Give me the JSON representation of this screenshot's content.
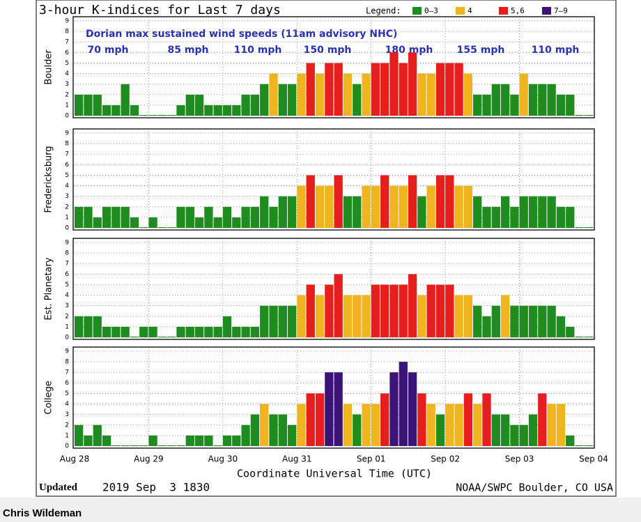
{
  "chart_data": {
    "type": "bar",
    "title": "3-hour K-indices for Last 7 days",
    "legend_title": "Legend:",
    "legend": [
      {
        "label": "0–3",
        "color": "#1e8c1e",
        "range": [
          0,
          3
        ]
      },
      {
        "label": "4",
        "color": "#f0b41e",
        "range": [
          4,
          4
        ]
      },
      {
        "label": "5,6",
        "color": "#e61e1e",
        "range": [
          5,
          6
        ]
      },
      {
        "label": "7–9",
        "color": "#3c1478",
        "range": [
          7,
          9
        ]
      }
    ],
    "annotation": "Dorian max sustained wind speeds (11am advisory NHC)",
    "wind_labels": [
      "70 mph",
      "85 mph",
      "110 mph",
      "150 mph",
      "180 mph",
      "155 mph",
      "110 mph"
    ],
    "xticks": [
      "Aug 28",
      "Aug 29",
      "Aug 30",
      "Aug 31",
      "Sep 01",
      "Sep 02",
      "Sep 03",
      "Sep 04"
    ],
    "xlabel": "Coordinate Universal Time (UTC)",
    "ylim": [
      0,
      9
    ],
    "yticks": [
      0,
      1,
      2,
      3,
      4,
      5,
      6,
      7,
      8,
      9
    ],
    "grid": true,
    "panels": [
      {
        "ylabel": "Boulder",
        "values": [
          2,
          2,
          2,
          1,
          1,
          3,
          1,
          0,
          0,
          0,
          0,
          1,
          2,
          2,
          1,
          1,
          1,
          1,
          2,
          2,
          3,
          4,
          3,
          3,
          4,
          5,
          4,
          5,
          5,
          4,
          3,
          4,
          5,
          5,
          6,
          5,
          6,
          4,
          4,
          5,
          5,
          5,
          4,
          2,
          2,
          3,
          3,
          2,
          4,
          3,
          3,
          3,
          2,
          2,
          0,
          0
        ]
      },
      {
        "ylabel": "Fredericksburg",
        "values": [
          2,
          2,
          1,
          2,
          2,
          2,
          1,
          0,
          1,
          0,
          0,
          2,
          2,
          1,
          2,
          1,
          2,
          1,
          2,
          2,
          3,
          2,
          3,
          3,
          4,
          5,
          4,
          4,
          5,
          3,
          3,
          4,
          4,
          5,
          4,
          4,
          5,
          3,
          4,
          5,
          5,
          4,
          4,
          3,
          2,
          2,
          3,
          2,
          3,
          3,
          3,
          3,
          2,
          2,
          0,
          0
        ]
      },
      {
        "ylabel": "Est. Planetary",
        "values": [
          2,
          2,
          2,
          1,
          1,
          1,
          0,
          1,
          1,
          0,
          0,
          1,
          1,
          1,
          1,
          1,
          2,
          1,
          1,
          1,
          3,
          3,
          3,
          3,
          4,
          5,
          4,
          5,
          6,
          4,
          4,
          4,
          5,
          5,
          5,
          5,
          6,
          4,
          5,
          5,
          5,
          4,
          4,
          3,
          2,
          3,
          4,
          3,
          3,
          3,
          3,
          3,
          2,
          1,
          0,
          0
        ]
      },
      {
        "ylabel": "College",
        "values": [
          2,
          1,
          2,
          1,
          0,
          0,
          0,
          0,
          1,
          0,
          0,
          0,
          1,
          1,
          1,
          0,
          1,
          1,
          2,
          3,
          4,
          3,
          3,
          2,
          4,
          5,
          5,
          7,
          7,
          4,
          3,
          4,
          4,
          5,
          7,
          8,
          7,
          5,
          4,
          3,
          4,
          4,
          5,
          4,
          5,
          3,
          3,
          2,
          2,
          3,
          5,
          4,
          4,
          1,
          0,
          0
        ]
      }
    ],
    "updated_label": "Updated",
    "updated": "2019 Sep  3 1830",
    "credit": "NOAA/SWPC Boulder, CO USA"
  },
  "caption": "Chris Wildeman"
}
